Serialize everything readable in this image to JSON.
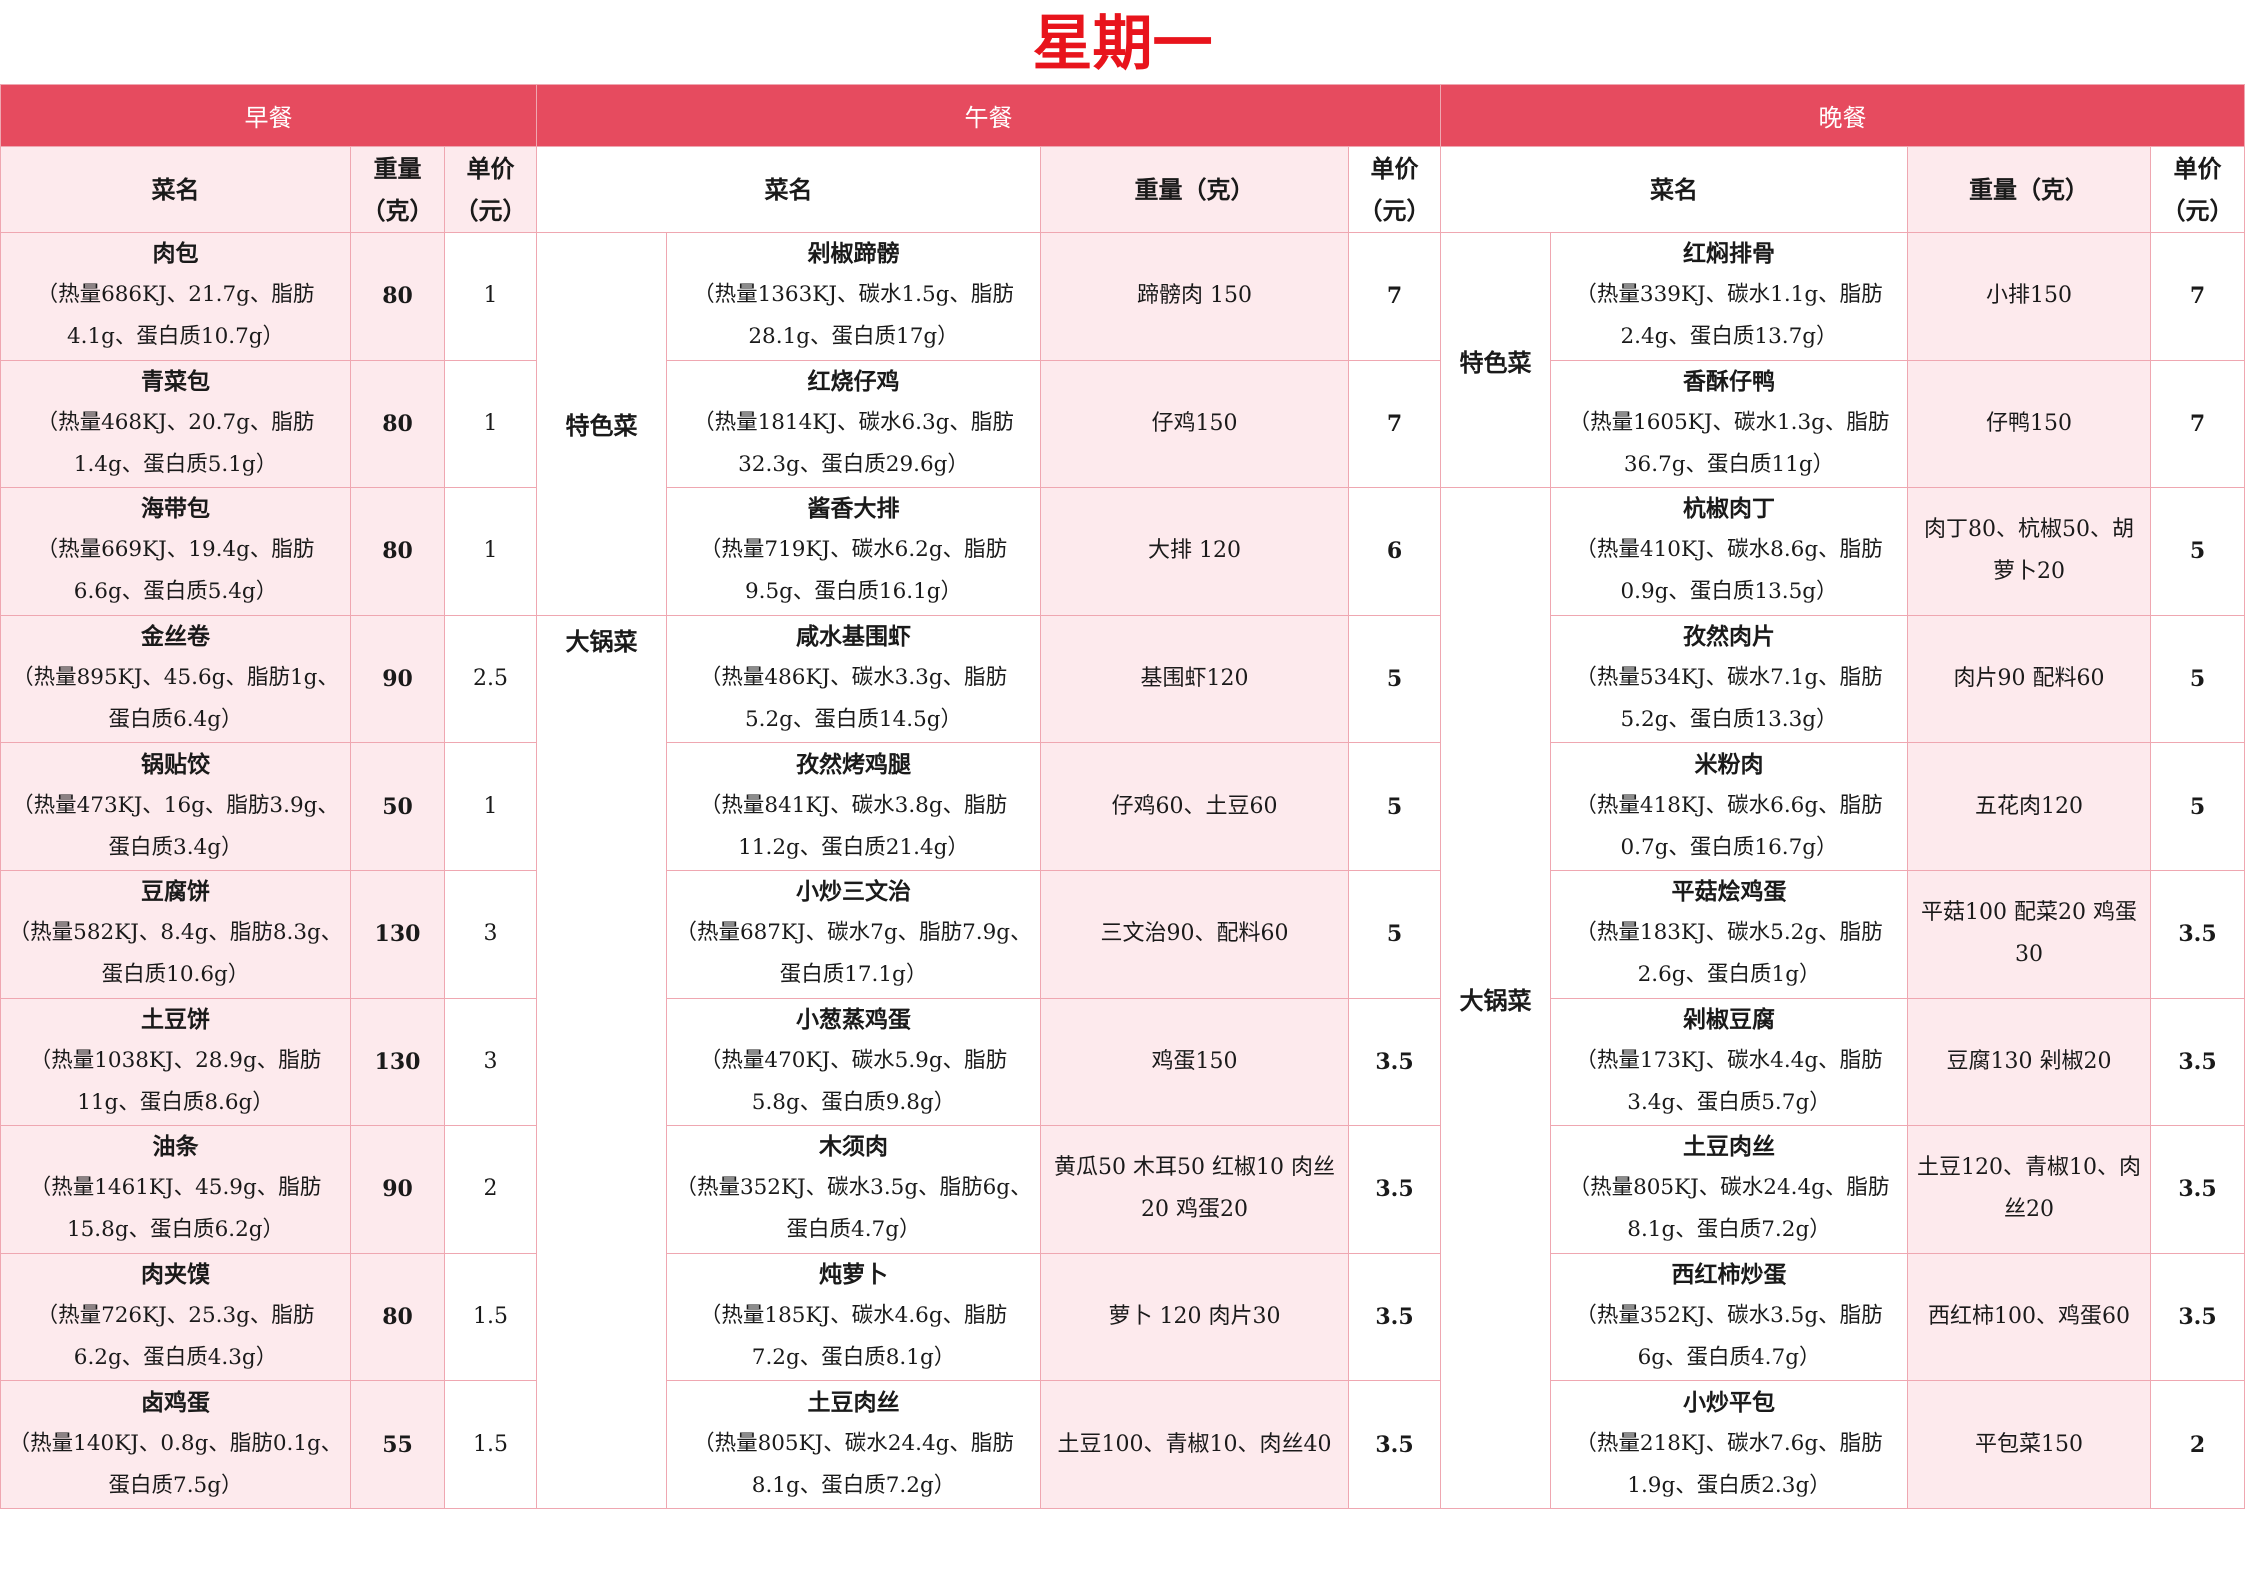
{
  "title": "星期一",
  "meals": {
    "breakfast": "早餐",
    "lunch": "午餐",
    "dinner": "晚餐"
  },
  "headers": {
    "breakfast": [
      "菜名",
      "重量（克）",
      "单价（元）"
    ],
    "lunch": [
      "菜名",
      "重量（克）",
      "单价（元）"
    ],
    "dinner": [
      "菜名",
      "重量（克）",
      "单价（元）"
    ]
  },
  "categories": {
    "special": "特色菜",
    "bigpot": "大锅菜"
  },
  "breakfast": [
    {
      "name": "肉包",
      "nutrition": "（热量686KJ、21.7g、脂肪4.1g、蛋白质10.7g）",
      "weight": "80",
      "price": "1"
    },
    {
      "name": "青菜包",
      "nutrition": "（热量468KJ、20.7g、脂肪1.4g、蛋白质5.1g）",
      "weight": "80",
      "price": "1"
    },
    {
      "name": "海带包",
      "nutrition": "（热量669KJ、19.4g、脂肪6.6g、蛋白质5.4g）",
      "weight": "80",
      "price": "1"
    },
    {
      "name": "金丝卷",
      "nutrition": "（热量895KJ、45.6g、脂肪1g、蛋白质6.4g）",
      "weight": "90",
      "price": "2.5"
    },
    {
      "name": "锅贴饺",
      "nutrition": "（热量473KJ、16g、脂肪3.9g、蛋白质3.4g）",
      "weight": "50",
      "price": "1"
    },
    {
      "name": "豆腐饼",
      "nutrition": "（热量582KJ、8.4g、脂肪8.3g、蛋白质10.6g）",
      "weight": "130",
      "price": "3"
    },
    {
      "name": "土豆饼",
      "nutrition": "（热量1038KJ、28.9g、脂肪11g、蛋白质8.6g）",
      "weight": "130",
      "price": "3"
    },
    {
      "name": "油条",
      "nutrition": "（热量1461KJ、45.9g、脂肪15.8g、蛋白质6.2g）",
      "weight": "90",
      "price": "2"
    },
    {
      "name": "肉夹馍",
      "nutrition": "（热量726KJ、25.3g、脂肪6.2g、蛋白质4.3g）",
      "weight": "80",
      "price": "1.5"
    },
    {
      "name": "卤鸡蛋",
      "nutrition": "（热量140KJ、0.8g、脂肪0.1g、蛋白质7.5g）",
      "weight": "55",
      "price": "1.5"
    }
  ],
  "lunch": [
    {
      "name": "剁椒蹄髈",
      "nutrition": "（热量1363KJ、碳水1.5g、脂肪28.1g、蛋白质17g）",
      "weight": "蹄髈肉 150",
      "price": "7"
    },
    {
      "name": "红烧仔鸡",
      "nutrition": "（热量1814KJ、碳水6.3g、脂肪32.3g、蛋白质29.6g）",
      "weight": "仔鸡150",
      "price": "7"
    },
    {
      "name": "酱香大排",
      "nutrition": "（热量719KJ、碳水6.2g、脂肪9.5g、蛋白质16.1g）",
      "weight": "大排 120",
      "price": "6"
    },
    {
      "name": "咸水基围虾",
      "nutrition": "（热量486KJ、碳水3.3g、脂肪5.2g、蛋白质14.5g）",
      "weight": "基围虾120",
      "price": "5"
    },
    {
      "name": "孜然烤鸡腿",
      "nutrition": "（热量841KJ、碳水3.8g、脂肪11.2g、蛋白质21.4g）",
      "weight": "仔鸡60、土豆60",
      "price": "5"
    },
    {
      "name": "小炒三文治",
      "nutrition": "（热量687KJ、碳水7g、脂肪7.9g、蛋白质17.1g）",
      "weight": "三文治90、配料60",
      "price": "5"
    },
    {
      "name": "小葱蒸鸡蛋",
      "nutrition": "（热量470KJ、碳水5.9g、脂肪5.8g、蛋白质9.8g）",
      "weight": "鸡蛋150",
      "price": "3.5"
    },
    {
      "name": "木须肉",
      "nutrition": "（热量352KJ、碳水3.5g、脂肪6g、蛋白质4.7g）",
      "weight": "黄瓜50 木耳50 红椒10 肉丝20 鸡蛋20",
      "price": "3.5"
    },
    {
      "name": "炖萝卜",
      "nutrition": "（热量185KJ、碳水4.6g、脂肪7.2g、蛋白质8.1g）",
      "weight": "萝卜 120 肉片30",
      "price": "3.5"
    },
    {
      "name": "土豆肉丝",
      "nutrition": "（热量805KJ、碳水24.4g、脂肪8.1g、蛋白质7.2g）",
      "weight": "土豆100、青椒10、肉丝40",
      "price": "3.5"
    }
  ],
  "dinner": [
    {
      "name": "红焖排骨",
      "nutrition": "（热量339KJ、碳水1.1g、脂肪2.4g、蛋白质13.7g）",
      "weight": "小排150",
      "price": "7"
    },
    {
      "name": "香酥仔鸭",
      "nutrition": "（热量1605KJ、碳水1.3g、脂肪36.7g、蛋白质11g）",
      "weight": "仔鸭150",
      "price": "7"
    },
    {
      "name": "杭椒肉丁",
      "nutrition": "（热量410KJ、碳水8.6g、脂肪0.9g、蛋白质13.5g）",
      "weight": "肉丁80、杭椒50、胡萝卜20",
      "price": "5"
    },
    {
      "name": "孜然肉片",
      "nutrition": "（热量534KJ、碳水7.1g、脂肪5.2g、蛋白质13.3g）",
      "weight": "肉片90 配料60",
      "price": "5"
    },
    {
      "name": "米粉肉",
      "nutrition": "（热量418KJ、碳水6.6g、脂肪0.7g、蛋白质16.7g）",
      "weight": "五花肉120",
      "price": "5"
    },
    {
      "name": "平菇烩鸡蛋",
      "nutrition": "（热量183KJ、碳水5.2g、脂肪2.6g、蛋白质1g）",
      "weight": "平菇100 配菜20 鸡蛋30",
      "price": "3.5"
    },
    {
      "name": "剁椒豆腐",
      "nutrition": "（热量173KJ、碳水4.4g、脂肪3.4g、蛋白质5.7g）",
      "weight": "豆腐130 剁椒20",
      "price": "3.5"
    },
    {
      "name": "土豆肉丝",
      "nutrition": "（热量805KJ、碳水24.4g、脂肪8.1g、蛋白质7.2g）",
      "weight": "土豆120、青椒10、肉丝20",
      "price": "3.5"
    },
    {
      "name": "西红柿炒蛋",
      "nutrition": "（热量352KJ、碳水3.5g、脂肪6g、蛋白质4.7g）",
      "weight": "西红柿100、鸡蛋60",
      "price": "3.5"
    },
    {
      "name": "小炒平包",
      "nutrition": "（热量218KJ、碳水7.6g、脂肪1.9g、蛋白质2.3g）",
      "weight": "平包菜150",
      "price": "2"
    }
  ]
}
